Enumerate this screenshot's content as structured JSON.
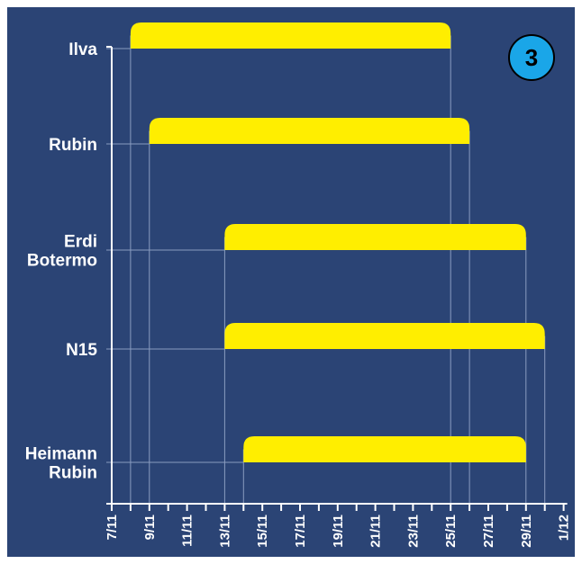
{
  "colors": {
    "background": "#2b4475",
    "bar": "#ffee00",
    "gridline": "#8a9cc0",
    "axis": "#ffffff",
    "text": "#ffffff",
    "badge_fill": "#1aa6e8"
  },
  "badge": {
    "label": "3"
  },
  "chart_data": {
    "type": "bar",
    "orientation": "horizontal",
    "style": "gantt",
    "x_axis": {
      "ticks": [
        "7/11",
        "8/11",
        "9/11",
        "10/11",
        "11/11",
        "12/11",
        "13/11",
        "14/11",
        "15/11",
        "16/11",
        "17/11",
        "18/11",
        "19/11",
        "20/11",
        "21/11",
        "22/11",
        "23/11",
        "24/11",
        "25/11",
        "26/11",
        "27/11",
        "28/11",
        "29/11",
        "30/11",
        "1/12"
      ],
      "tick_labels": [
        "7/11",
        "",
        "9/11",
        "",
        "11/11",
        "",
        "13/11",
        "",
        "15/11",
        "",
        "17/11",
        "",
        "19/11",
        "",
        "21/11",
        "",
        "23/11",
        "",
        "25/11",
        "",
        "27/11",
        "",
        "29/11",
        "",
        "1/12"
      ],
      "range": [
        "7/11",
        "1/12"
      ]
    },
    "series": [
      {
        "label_lines": [
          "Ilva"
        ],
        "start": "8/11",
        "end": "25/11"
      },
      {
        "label_lines": [
          "Rubin"
        ],
        "start": "9/11",
        "end": "26/11"
      },
      {
        "label_lines": [
          "Erdi",
          "Botermo"
        ],
        "start": "13/11",
        "end": "29/11"
      },
      {
        "label_lines": [
          "N15"
        ],
        "start": "13/11",
        "end": "30/11"
      },
      {
        "label_lines": [
          "Heimann",
          "Rubin"
        ],
        "start": "14/11",
        "end": "29/11"
      }
    ],
    "grid": "vertical-at-bar-edges",
    "legend": "none"
  }
}
